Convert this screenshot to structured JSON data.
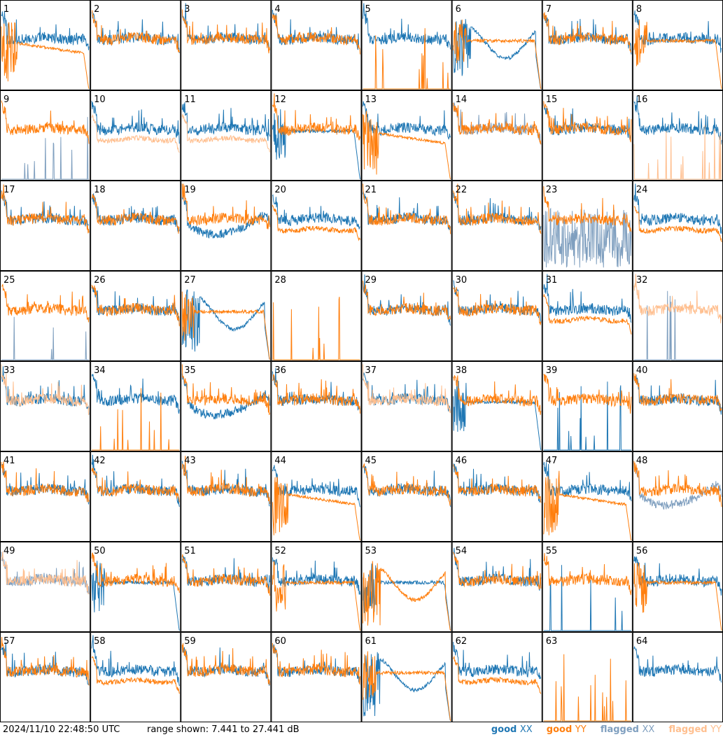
{
  "timestamp": "2024/11/10 22:48:50 UTC",
  "range_text": "range shown: 7.441 to 27.441 dB",
  "legend": [
    {
      "id": "good_xx",
      "prefix": "good ",
      "pol": "XX",
      "color": "#1f77b4"
    },
    {
      "id": "good_yy",
      "prefix": "good ",
      "pol": "YY",
      "color": "#ff7f0e"
    },
    {
      "id": "flagged_xx",
      "prefix": "flagged ",
      "pol": "XX",
      "color": "#7f9fbf"
    },
    {
      "id": "flagged_yy",
      "prefix": "flagged ",
      "pol": "YY",
      "color": "#ffbf8f"
    }
  ],
  "chart_data": {
    "type": "line",
    "layout": "small-multiples 8x8",
    "ylim": [
      7.441,
      27.441
    ],
    "yunit": "dB",
    "series_colors": {
      "good_xx": "#1f77b4",
      "good_yy": "#ff7f0e",
      "flagged_xx": "#7f9fbf",
      "flagged_yy": "#ffbf8f"
    },
    "panels": [
      {
        "n": 1,
        "xx": "good",
        "yy": "good",
        "xx_prof": "base",
        "yy_prof": "rolloff"
      },
      {
        "n": 2,
        "xx": "good",
        "yy": "good",
        "xx_prof": "base",
        "yy_prof": "base"
      },
      {
        "n": 3,
        "xx": "good",
        "yy": "good",
        "xx_prof": "base",
        "yy_prof": "base"
      },
      {
        "n": 4,
        "xx": "good",
        "yy": "good",
        "xx_prof": "base",
        "yy_prof": "base"
      },
      {
        "n": 5,
        "xx": "good",
        "yy": "good",
        "xx_prof": "base",
        "yy_prof": "spikes"
      },
      {
        "n": 6,
        "xx": "good",
        "yy": "good",
        "xx_prof": "wave",
        "yy_prof": "flat"
      },
      {
        "n": 7,
        "xx": "good",
        "yy": "good",
        "xx_prof": "base",
        "yy_prof": "base"
      },
      {
        "n": 8,
        "xx": "good",
        "yy": "good",
        "xx_prof": "base",
        "yy_prof": "flat"
      },
      {
        "n": 9,
        "xx": "flagged",
        "yy": "good",
        "xx_prof": "spikes",
        "yy_prof": "base"
      },
      {
        "n": 10,
        "xx": "good",
        "yy": "flagged",
        "xx_prof": "base",
        "yy_prof": "low"
      },
      {
        "n": 11,
        "xx": "good",
        "yy": "flagged",
        "xx_prof": "base",
        "yy_prof": "low"
      },
      {
        "n": 12,
        "xx": "good",
        "yy": "good",
        "xx_prof": "flat",
        "yy_prof": "base"
      },
      {
        "n": 13,
        "xx": "good",
        "yy": "good",
        "xx_prof": "base",
        "yy_prof": "rolloff"
      },
      {
        "n": 14,
        "xx": "flagged",
        "yy": "good",
        "xx_prof": "base",
        "yy_prof": "base"
      },
      {
        "n": 15,
        "xx": "good",
        "yy": "good",
        "xx_prof": "base",
        "yy_prof": "base"
      },
      {
        "n": 16,
        "xx": "good",
        "yy": "flagged",
        "xx_prof": "base",
        "yy_prof": "spikes"
      },
      {
        "n": 17,
        "xx": "good",
        "yy": "good",
        "xx_prof": "base",
        "yy_prof": "base"
      },
      {
        "n": 18,
        "xx": "good",
        "yy": "good",
        "xx_prof": "base",
        "yy_prof": "base"
      },
      {
        "n": 19,
        "xx": "good",
        "yy": "good",
        "xx_prof": "dip",
        "yy_prof": "base"
      },
      {
        "n": 20,
        "xx": "good",
        "yy": "good",
        "xx_prof": "base",
        "yy_prof": "low"
      },
      {
        "n": 21,
        "xx": "good",
        "yy": "good",
        "xx_prof": "base",
        "yy_prof": "base"
      },
      {
        "n": 22,
        "xx": "good",
        "yy": "good",
        "xx_prof": "base",
        "yy_prof": "base"
      },
      {
        "n": 23,
        "xx": "flagged",
        "yy": "good",
        "xx_prof": "noise",
        "yy_prof": "base"
      },
      {
        "n": 24,
        "xx": "good",
        "yy": "good",
        "xx_prof": "base",
        "yy_prof": "low"
      },
      {
        "n": 25,
        "xx": "flagged",
        "yy": "good",
        "xx_prof": "spikes",
        "yy_prof": "base"
      },
      {
        "n": 26,
        "xx": "good",
        "yy": "good",
        "xx_prof": "base",
        "yy_prof": "base"
      },
      {
        "n": 27,
        "xx": "good",
        "yy": "good",
        "xx_prof": "wave",
        "yy_prof": "flat"
      },
      {
        "n": 28,
        "xx": "none",
        "yy": "good",
        "xx_prof": "",
        "yy_prof": "spikes"
      },
      {
        "n": 29,
        "xx": "good",
        "yy": "good",
        "xx_prof": "base",
        "yy_prof": "base"
      },
      {
        "n": 30,
        "xx": "good",
        "yy": "good",
        "xx_prof": "base",
        "yy_prof": "base"
      },
      {
        "n": 31,
        "xx": "good",
        "yy": "good",
        "xx_prof": "base",
        "yy_prof": "low"
      },
      {
        "n": 32,
        "xx": "flagged",
        "yy": "flagged",
        "xx_prof": "spikes",
        "yy_prof": "base"
      },
      {
        "n": 33,
        "xx": "good",
        "yy": "flagged",
        "xx_prof": "base",
        "yy_prof": "base"
      },
      {
        "n": 34,
        "xx": "good",
        "yy": "good",
        "xx_prof": "base",
        "yy_prof": "spikes"
      },
      {
        "n": 35,
        "xx": "good",
        "yy": "good",
        "xx_prof": "dip",
        "yy_prof": "base"
      },
      {
        "n": 36,
        "xx": "good",
        "yy": "good",
        "xx_prof": "base",
        "yy_prof": "base"
      },
      {
        "n": 37,
        "xx": "good",
        "yy": "flagged",
        "xx_prof": "base",
        "yy_prof": "base"
      },
      {
        "n": 38,
        "xx": "good",
        "yy": "good",
        "xx_prof": "flat",
        "yy_prof": "base"
      },
      {
        "n": 39,
        "xx": "good",
        "yy": "good",
        "xx_prof": "spikes",
        "yy_prof": "base"
      },
      {
        "n": 40,
        "xx": "good",
        "yy": "good",
        "xx_prof": "base",
        "yy_prof": "base"
      },
      {
        "n": 41,
        "xx": "good",
        "yy": "good",
        "xx_prof": "base",
        "yy_prof": "base"
      },
      {
        "n": 42,
        "xx": "good",
        "yy": "good",
        "xx_prof": "base",
        "yy_prof": "base"
      },
      {
        "n": 43,
        "xx": "good",
        "yy": "good",
        "xx_prof": "base",
        "yy_prof": "base"
      },
      {
        "n": 44,
        "xx": "good",
        "yy": "good",
        "xx_prof": "base",
        "yy_prof": "rolloff"
      },
      {
        "n": 45,
        "xx": "good",
        "yy": "good",
        "xx_prof": "base",
        "yy_prof": "base"
      },
      {
        "n": 46,
        "xx": "good",
        "yy": "good",
        "xx_prof": "base",
        "yy_prof": "base"
      },
      {
        "n": 47,
        "xx": "good",
        "yy": "good",
        "xx_prof": "base",
        "yy_prof": "rolloff"
      },
      {
        "n": 48,
        "xx": "flagged",
        "yy": "good",
        "xx_prof": "dip",
        "yy_prof": "base"
      },
      {
        "n": 49,
        "xx": "flagged",
        "yy": "flagged",
        "xx_prof": "base",
        "yy_prof": "base"
      },
      {
        "n": 50,
        "xx": "good",
        "yy": "good",
        "xx_prof": "flat",
        "yy_prof": "base"
      },
      {
        "n": 51,
        "xx": "good",
        "yy": "good",
        "xx_prof": "base",
        "yy_prof": "base"
      },
      {
        "n": 52,
        "xx": "good",
        "yy": "good",
        "xx_prof": "base",
        "yy_prof": "flat"
      },
      {
        "n": 53,
        "xx": "good",
        "yy": "good",
        "xx_prof": "flat",
        "yy_prof": "wave"
      },
      {
        "n": 54,
        "xx": "good",
        "yy": "good",
        "xx_prof": "base",
        "yy_prof": "base"
      },
      {
        "n": 55,
        "xx": "good",
        "yy": "good",
        "xx_prof": "spikes",
        "yy_prof": "base"
      },
      {
        "n": 56,
        "xx": "good",
        "yy": "good",
        "xx_prof": "base",
        "yy_prof": "flat"
      },
      {
        "n": 57,
        "xx": "good",
        "yy": "good",
        "xx_prof": "base",
        "yy_prof": "base"
      },
      {
        "n": 58,
        "xx": "good",
        "yy": "good",
        "xx_prof": "base",
        "yy_prof": "low"
      },
      {
        "n": 59,
        "xx": "good",
        "yy": "good",
        "xx_prof": "base",
        "yy_prof": "base"
      },
      {
        "n": 60,
        "xx": "good",
        "yy": "good",
        "xx_prof": "base",
        "yy_prof": "base"
      },
      {
        "n": 61,
        "xx": "good",
        "yy": "good",
        "xx_prof": "wave",
        "yy_prof": "flat"
      },
      {
        "n": 62,
        "xx": "good",
        "yy": "good",
        "xx_prof": "base",
        "yy_prof": "low"
      },
      {
        "n": 63,
        "xx": "none",
        "yy": "good",
        "xx_prof": "",
        "yy_prof": "spikes"
      },
      {
        "n": 64,
        "xx": "good",
        "yy": "none",
        "xx_prof": "base",
        "yy_prof": ""
      }
    ]
  }
}
